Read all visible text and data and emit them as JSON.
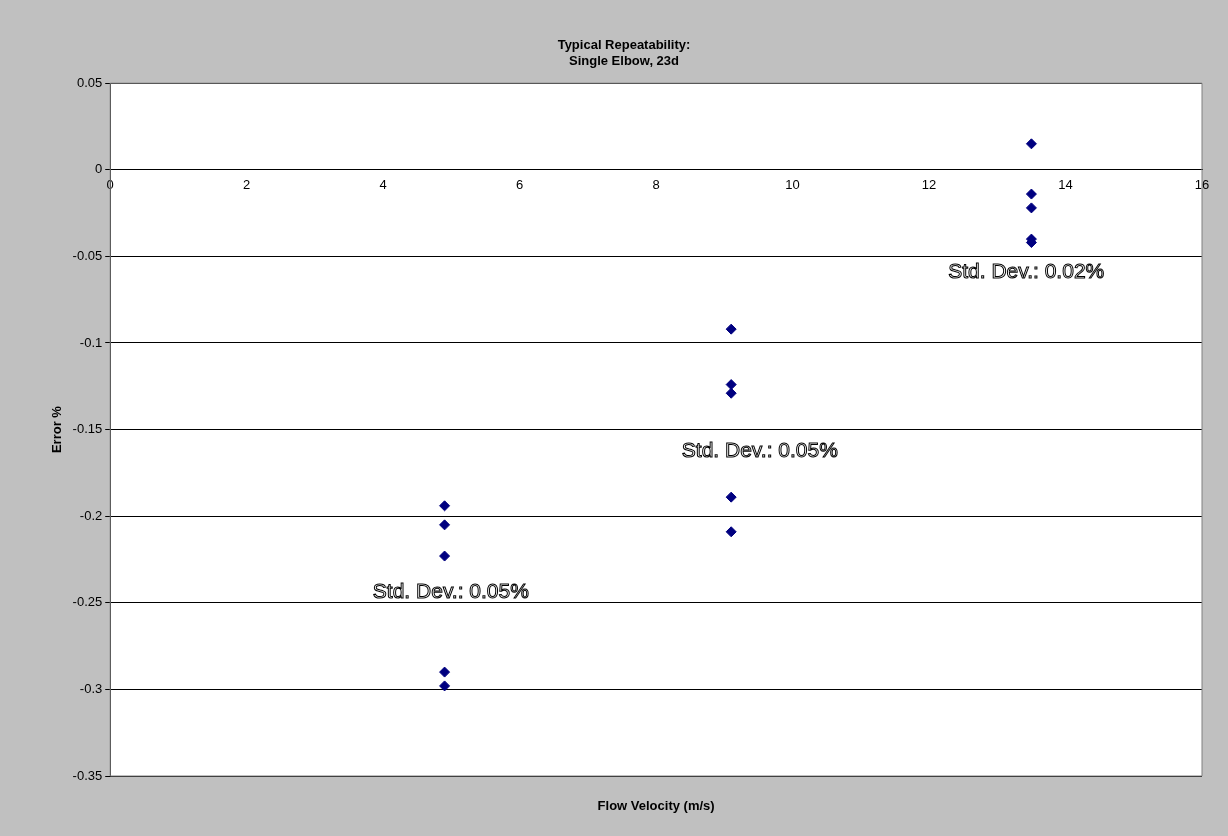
{
  "chart_data": {
    "type": "scatter",
    "title": "Typical Repeatability:\nSingle Elbow, 23d",
    "xlabel": "Flow Velocity (m/s)",
    "ylabel": "Error %",
    "series": [
      {
        "color": "#000080",
        "x": [
          4.9,
          4.9,
          4.9,
          4.9,
          4.9,
          9.1,
          9.1,
          9.1,
          9.1,
          9.1,
          13.5,
          13.5,
          13.5,
          13.5,
          13.5
        ],
        "values": [
          -0.194,
          -0.205,
          -0.223,
          -0.29,
          -0.298,
          -0.092,
          -0.124,
          -0.129,
          -0.189,
          -0.209,
          0.015,
          -0.014,
          -0.022,
          -0.04,
          -0.042
        ]
      }
    ],
    "annotations": [
      "Std. Dev.: 0.05%",
      "Std. Dev.: 0.05%",
      "Std. Dev.: 0.02%"
    ],
    "xlim": [
      0,
      16
    ],
    "xticks": [
      0,
      2,
      4,
      6,
      8,
      10,
      12,
      14,
      16
    ],
    "ylim": [
      -0.35,
      0.05
    ],
    "yticks": [
      -0.35,
      -0.3,
      -0.25,
      -0.2,
      -0.15,
      -0.1,
      -0.05,
      0,
      0.05
    ],
    "grid": "y",
    "marker": "diamond"
  }
}
